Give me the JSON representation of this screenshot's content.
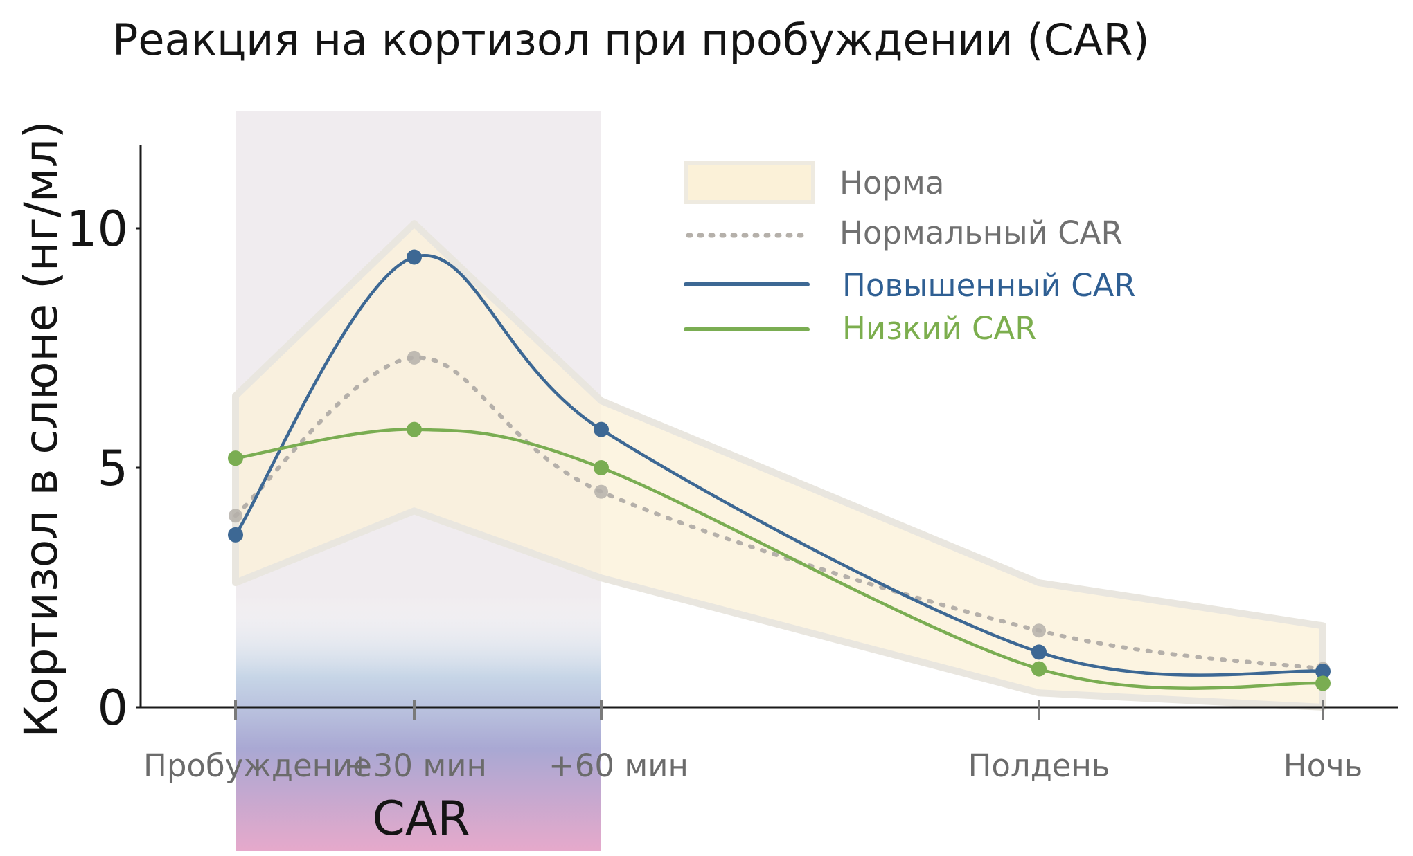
{
  "chart_data": {
    "type": "line",
    "title": "Реакция на кортизол при пробуждении (CAR)",
    "ylabel": "Кортизол в слюне (нг/мл)",
    "xlabel": "",
    "categories": [
      "Пробуждение",
      "+30 мин",
      "+60 мин",
      "Полдень",
      "Ночь"
    ],
    "x": [
      0,
      30,
      60,
      180,
      270
    ],
    "ylim": [
      0,
      11.5
    ],
    "yticks": [
      "0",
      "5",
      "10"
    ],
    "band": {
      "name": "Норма",
      "upper": [
        6.5,
        10.1,
        6.4,
        2.6,
        1.7
      ],
      "lower": [
        2.6,
        4.1,
        2.7,
        0.3,
        0
      ]
    },
    "series": [
      {
        "name": "Нормальный CAR",
        "values": [
          4.0,
          7.3,
          4.5,
          1.6,
          0.8
        ],
        "color": "#b5b0aa",
        "style": "dotted"
      },
      {
        "name": "Повышенный CAR",
        "values": [
          3.6,
          9.4,
          5.8,
          1.15,
          0.75
        ],
        "color": "#3d6894",
        "style": "solid"
      },
      {
        "name": "Низкий CAR",
        "values": [
          5.2,
          5.8,
          5.0,
          0.8,
          0.5
        ],
        "color": "#7aad52",
        "style": "solid"
      }
    ],
    "annotations": [
      {
        "text": "CAR",
        "x_from": 0,
        "x_to": 60
      }
    ],
    "legend": "top-right",
    "grid": false
  },
  "colors": {
    "band": "#fbf1d8",
    "car_window": "#ebe6ea",
    "gradient_top": "#c4d4e6",
    "gradient_mid": "#a9a8d3",
    "gradient_bottom": "#e6a9cb"
  }
}
